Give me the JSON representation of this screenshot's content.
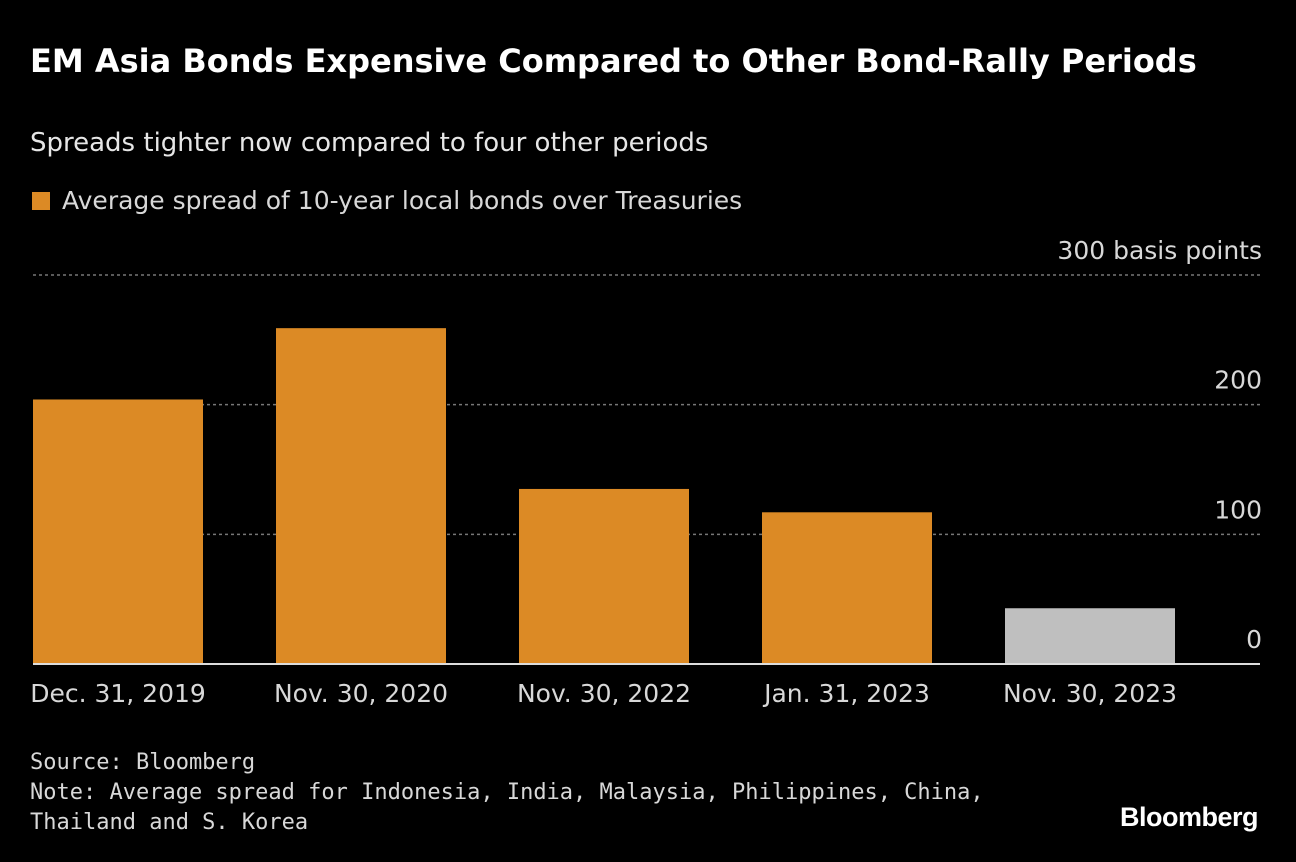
{
  "colors": {
    "highlight": "#DC8A25",
    "latest": "#BFBFBF",
    "grid": "#777777",
    "background": "#000000"
  },
  "chart_data": {
    "type": "bar",
    "title": "EM Asia Bonds Expensive Compared to Other Bond-Rally Periods",
    "subtitle": "Spreads tighter now compared to four other periods",
    "legend": [
      {
        "name": "Average spread of 10-year local bonds over Treasuries",
        "color": "#DC8A25"
      }
    ],
    "legend_position": "top-left",
    "categories": [
      "Dec. 31, 2019",
      "Nov. 30, 2020",
      "Nov. 30, 2022",
      "Jan. 31, 2023",
      "Nov. 30, 2023"
    ],
    "series": [
      {
        "name": "Average spread of 10-year local bonds over Treasuries",
        "values": [
          204,
          259,
          135,
          117,
          43
        ]
      }
    ],
    "bar_colors": [
      "#DC8A25",
      "#DC8A25",
      "#DC8A25",
      "#DC8A25",
      "#BFBFBF"
    ],
    "ylim": [
      0,
      300
    ],
    "yticks": [
      0,
      100,
      200,
      300
    ],
    "ytick_labels": [
      "0",
      "100",
      "200",
      "300 basis points"
    ],
    "grid": true,
    "xlabel": "",
    "ylabel": ""
  },
  "footer": {
    "source": "Source: Bloomberg",
    "note": "Note: Average spread for Indonesia, India, Malaysia, Philippines, China, Thailand and S. Korea",
    "logo": "Bloomberg"
  }
}
